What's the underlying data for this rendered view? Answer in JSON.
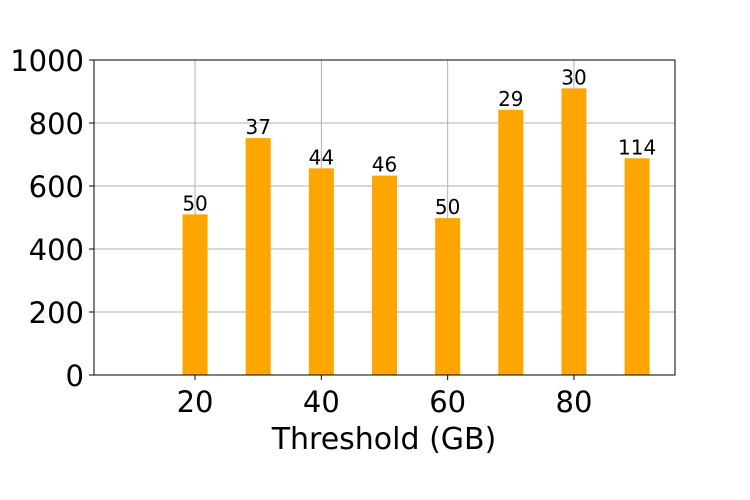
{
  "chart_data": {
    "type": "bar",
    "title": "",
    "xlabel": "Threshold (GB)",
    "ylabel": "",
    "x": [
      20,
      30,
      40,
      50,
      60,
      70,
      80,
      90
    ],
    "values": [
      510,
      752,
      656,
      633,
      498,
      842,
      910,
      688
    ],
    "bar_labels": [
      "50",
      "37",
      "44",
      "46",
      "50",
      "29",
      "30",
      "114"
    ],
    "x_ticks": [
      20,
      40,
      60,
      80
    ],
    "y_ticks": [
      0,
      200,
      400,
      600,
      800,
      1000
    ],
    "xlim": [
      4,
      96
    ],
    "ylim": [
      0,
      1000
    ],
    "grid": true,
    "bar_color": "#ffa500"
  }
}
